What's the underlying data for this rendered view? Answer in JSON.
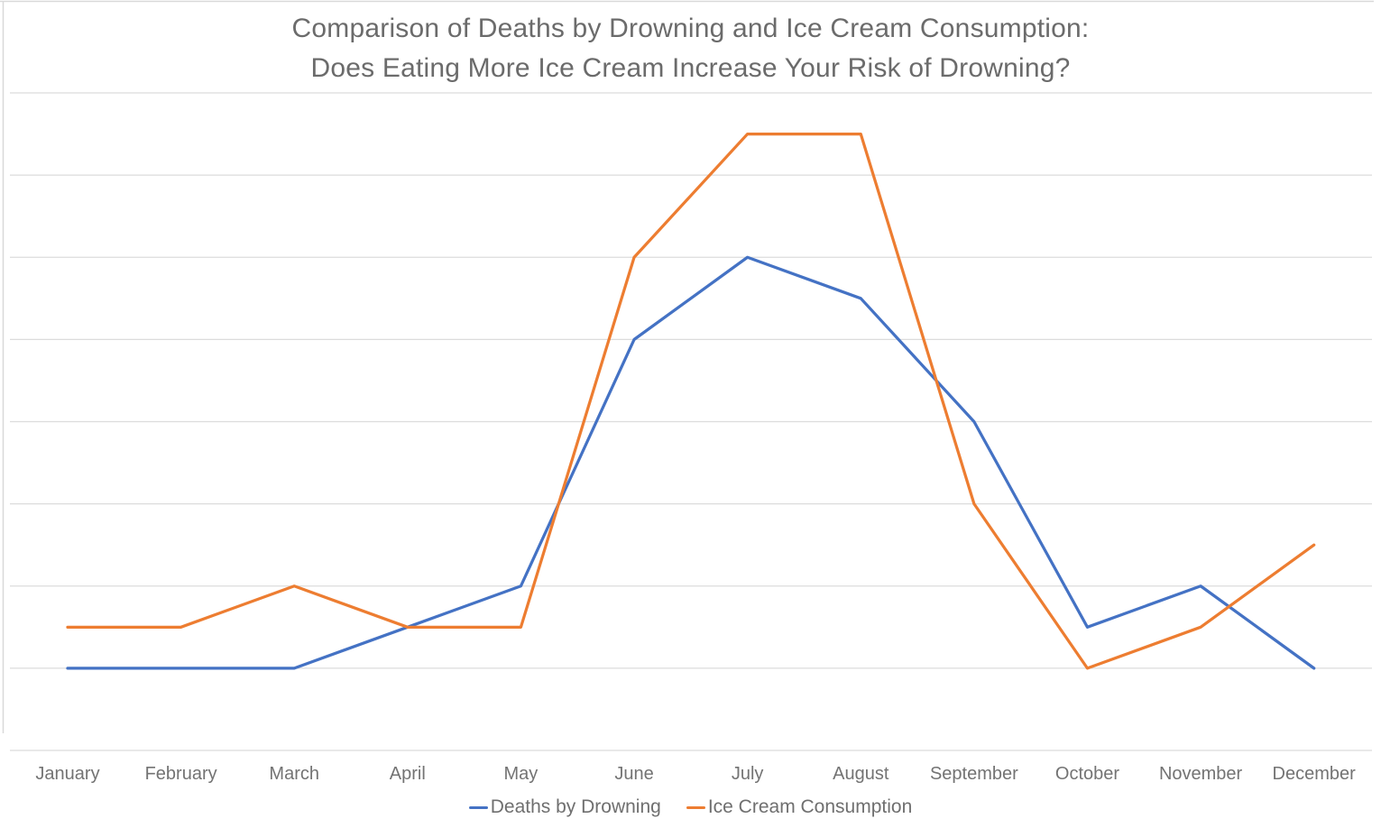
{
  "chart": {
    "title_line1": "Comparison of Deaths by Drowning and Ice Cream Consumption:",
    "title_line2": "Does Eating More Ice Cream Increase Your Risk of Drowning?"
  },
  "chart_data": {
    "type": "line",
    "title": "Comparison of Deaths by Drowning and Ice Cream Consumption: Does Eating More Ice Cream Increase Your Risk of Drowning?",
    "categories": [
      "January",
      "February",
      "March",
      "April",
      "May",
      "June",
      "July",
      "August",
      "September",
      "October",
      "November",
      "December"
    ],
    "series": [
      {
        "name": "Deaths by Drowning",
        "color": "#4472C4",
        "values": [
          2,
          2,
          2,
          3,
          4,
          10,
          12,
          11,
          8,
          3,
          4,
          2
        ]
      },
      {
        "name": "Ice Cream Consumption",
        "color": "#ED7D31",
        "values": [
          3,
          3,
          4,
          3,
          3,
          12,
          15,
          15,
          6,
          2,
          3,
          5
        ]
      }
    ],
    "xlabel": "",
    "ylabel": "",
    "ylim": [
      0,
      16
    ],
    "y_gridline_step": 2,
    "y_tick_labels_visible": false,
    "grid": true,
    "legend_position": "bottom"
  },
  "colors": {
    "background": "#FFFFFF",
    "gridline": "#DCDCDC",
    "frame_border": "#D9D9D9",
    "title_text": "#6B6B6B",
    "axis_text": "#737373"
  }
}
